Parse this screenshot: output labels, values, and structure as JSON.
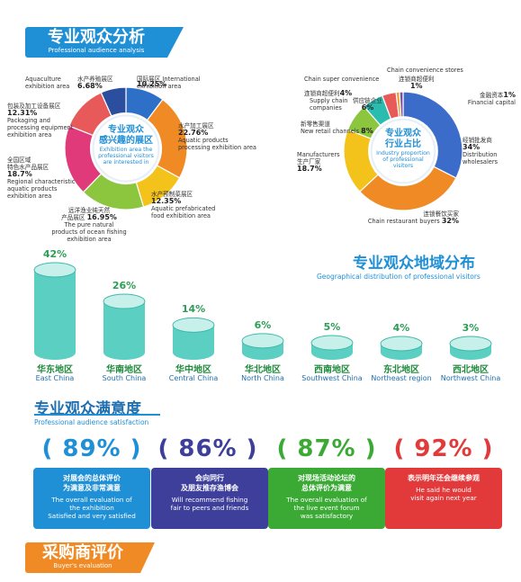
{
  "section1": {
    "title": "专业观众分析",
    "subtitle": "Professional audience analysis"
  },
  "donut1": {
    "center_zh": "专业观众\n感兴趣的展区",
    "center_en": "Exhibition area the\nprofessional visitors\nare interested in"
  },
  "donut2": {
    "center_zh": "专业观众\n行业占比",
    "center_en": "Industry proportion\nof professional\nvisitors"
  },
  "chart_data": [
    {
      "type": "pie",
      "categories": [
        "International exhibition area",
        "Aquatic products processing exhibition area",
        "Aquatic prefabricated food exhibition area",
        "The pure natural products of ocean fishing exhibition area",
        "Regional characteristic aquatic products exhibition area",
        "Packaging and processing equipment exhibition area",
        "Aquaculture exhibition area"
      ],
      "values": [
        10.25,
        22.76,
        12.35,
        16.95,
        18.7,
        12.31,
        6.68
      ],
      "colors": [
        "#2e6fc7",
        "#f08a24",
        "#f3c21b",
        "#8cc63f",
        "#e03a7a",
        "#e85a5a",
        "#2b4f9e"
      ],
      "labels": [
        {
          "zh": "国际展区",
          "en": "International\nexhibition area",
          "value": "10.25%"
        },
        {
          "zh": "水产加工展区",
          "en": "Aquatic products\nprocessing exhibition area",
          "value": "22.76%"
        },
        {
          "zh": "水产预制菜展区",
          "en": "Aquatic prefabricated\nfood exhibition area",
          "value": "12.35%"
        },
        {
          "zh": "远洋渔业纯天然\n产品展区",
          "en": "The pure natural\nproducts of ocean fishing\nexhibition area",
          "value": "16.95%"
        },
        {
          "zh": "全国区域\n特色水产品展区",
          "en": "Regional characteristic\naquatic products\nexhibition area",
          "value": "18.7%"
        },
        {
          "zh": "包装及加工设备展区",
          "en": "Packaging and\nprocessing equipment\nexhibition area",
          "value": "12.31%"
        },
        {
          "zh": "水产养殖展区",
          "en": "Aquaculture\nexhibition area",
          "value": "6.68%"
        }
      ]
    },
    {
      "type": "pie",
      "categories": [
        "Distribution wholesalers",
        "Chain restaurant buyers",
        "Manufacturers",
        "New retail channels",
        "Supply chain companies",
        "Chain super convenience",
        "Chain convenience stores",
        "Financial capital"
      ],
      "values": [
        34,
        32,
        18.7,
        8,
        6,
        4,
        1,
        1
      ],
      "colors": [
        "#3b6cc9",
        "#f08a24",
        "#f3c21b",
        "#8cc63f",
        "#2bbcb0",
        "#e85a5a",
        "#e8a23a",
        "#7a4fa0"
      ],
      "labels": [
        {
          "zh": "经销批发商",
          "en": "Distribution\nwholesalers",
          "value": "34%"
        },
        {
          "zh": "连锁餐饮买家",
          "en": "Chain restaurant buyers",
          "value": "32%"
        },
        {
          "zh": "生产厂家",
          "en": "Manufacturers",
          "value": "18.7%"
        },
        {
          "zh": "新零售渠道",
          "en": "New retail channels",
          "value": "8%"
        },
        {
          "zh": "供应链企业",
          "en": "Supply chain\ncompanies",
          "value": "6%"
        },
        {
          "zh": "连锁商超便利",
          "en": "Chain super convenience",
          "value": "4%"
        },
        {
          "zh": "连锁商超便利",
          "en": "Chain convenience stores",
          "value": "1%"
        },
        {
          "zh": "金融资本",
          "en": "Financial capital",
          "value": "1%"
        }
      ]
    },
    {
      "type": "bar",
      "title": "专业观众地域分布",
      "subtitle": "Geographical distribution of professional visitors",
      "categories": [
        "East China",
        "South China",
        "Central China",
        "North China",
        "Southwest China",
        "Northeast region",
        "Northwest China"
      ],
      "categories_zh": [
        "华东地区",
        "华南地区",
        "华中地区",
        "华北地区",
        "西南地区",
        "东北地区",
        "西北地区"
      ],
      "values": [
        42,
        26,
        14,
        6,
        5,
        4,
        3
      ],
      "value_labels": [
        "42%",
        "26%",
        "14%",
        "6%",
        "5%",
        "4%",
        "3%"
      ],
      "color": "#5ccfc3"
    }
  ],
  "section2": {
    "title": "专业观众满意度",
    "subtitle": "Professional audience satisfaction"
  },
  "satisfaction": [
    {
      "pct": "89%",
      "zh": "对展会的总体评价\n为满意及非常满意",
      "en": "The overall evaluation of\nthe exhibition\nSatisfied and very satisfied",
      "color": "#1f8fd6"
    },
    {
      "pct": "86%",
      "zh": "会向同行\n及朋友推存渔博会",
      "en": "Will recommend fishing\nfair to peers and friends",
      "color": "#3d3f9a"
    },
    {
      "pct": "87%",
      "zh": "对现场活动论坛的\n总体评价为满意",
      "en": "The overall evaluation of\nthe live event forum\nwas satisfactory",
      "color": "#3aaa35"
    },
    {
      "pct": "92%",
      "zh": "表示明年还会继续参观",
      "en": "He said he would\nvisit again next year",
      "color": "#e23a3a"
    }
  ],
  "section3": {
    "title": "采购商评价",
    "subtitle": "Buyer's evaluation"
  }
}
